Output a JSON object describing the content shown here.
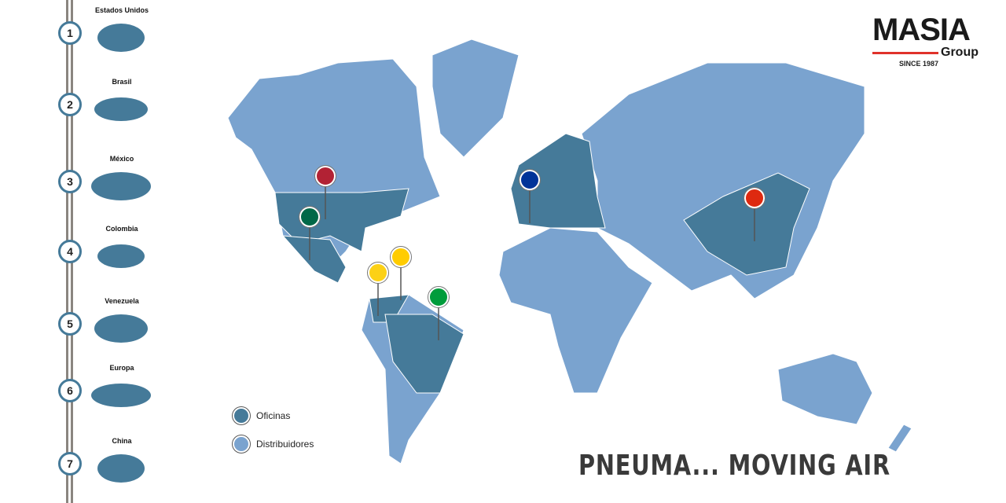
{
  "colors": {
    "oficinas": "#457a99",
    "distribuidores": "#7aa3cf",
    "accent": "#e0322a"
  },
  "logo": {
    "name": "MASIA",
    "sub": "Group",
    "since": "SINCE 1987"
  },
  "countries": [
    {
      "num": "1",
      "name": "Estados Unidos"
    },
    {
      "num": "2",
      "name": "Brasil"
    },
    {
      "num": "3",
      "name": "México"
    },
    {
      "num": "4",
      "name": "Colombia"
    },
    {
      "num": "5",
      "name": "Venezuela"
    },
    {
      "num": "6",
      "name": "Europa"
    },
    {
      "num": "7",
      "name": "China"
    }
  ],
  "legend": {
    "oficinas": "Oficinas",
    "distribuidores": "Distribuidores"
  },
  "slogan": "PNEUMA... MOVING AIR",
  "pins": [
    "usa-flag",
    "mexico-flag",
    "venezuela-flag",
    "colombia-flag",
    "brazil-flag",
    "eu-flag",
    "china-flag"
  ]
}
